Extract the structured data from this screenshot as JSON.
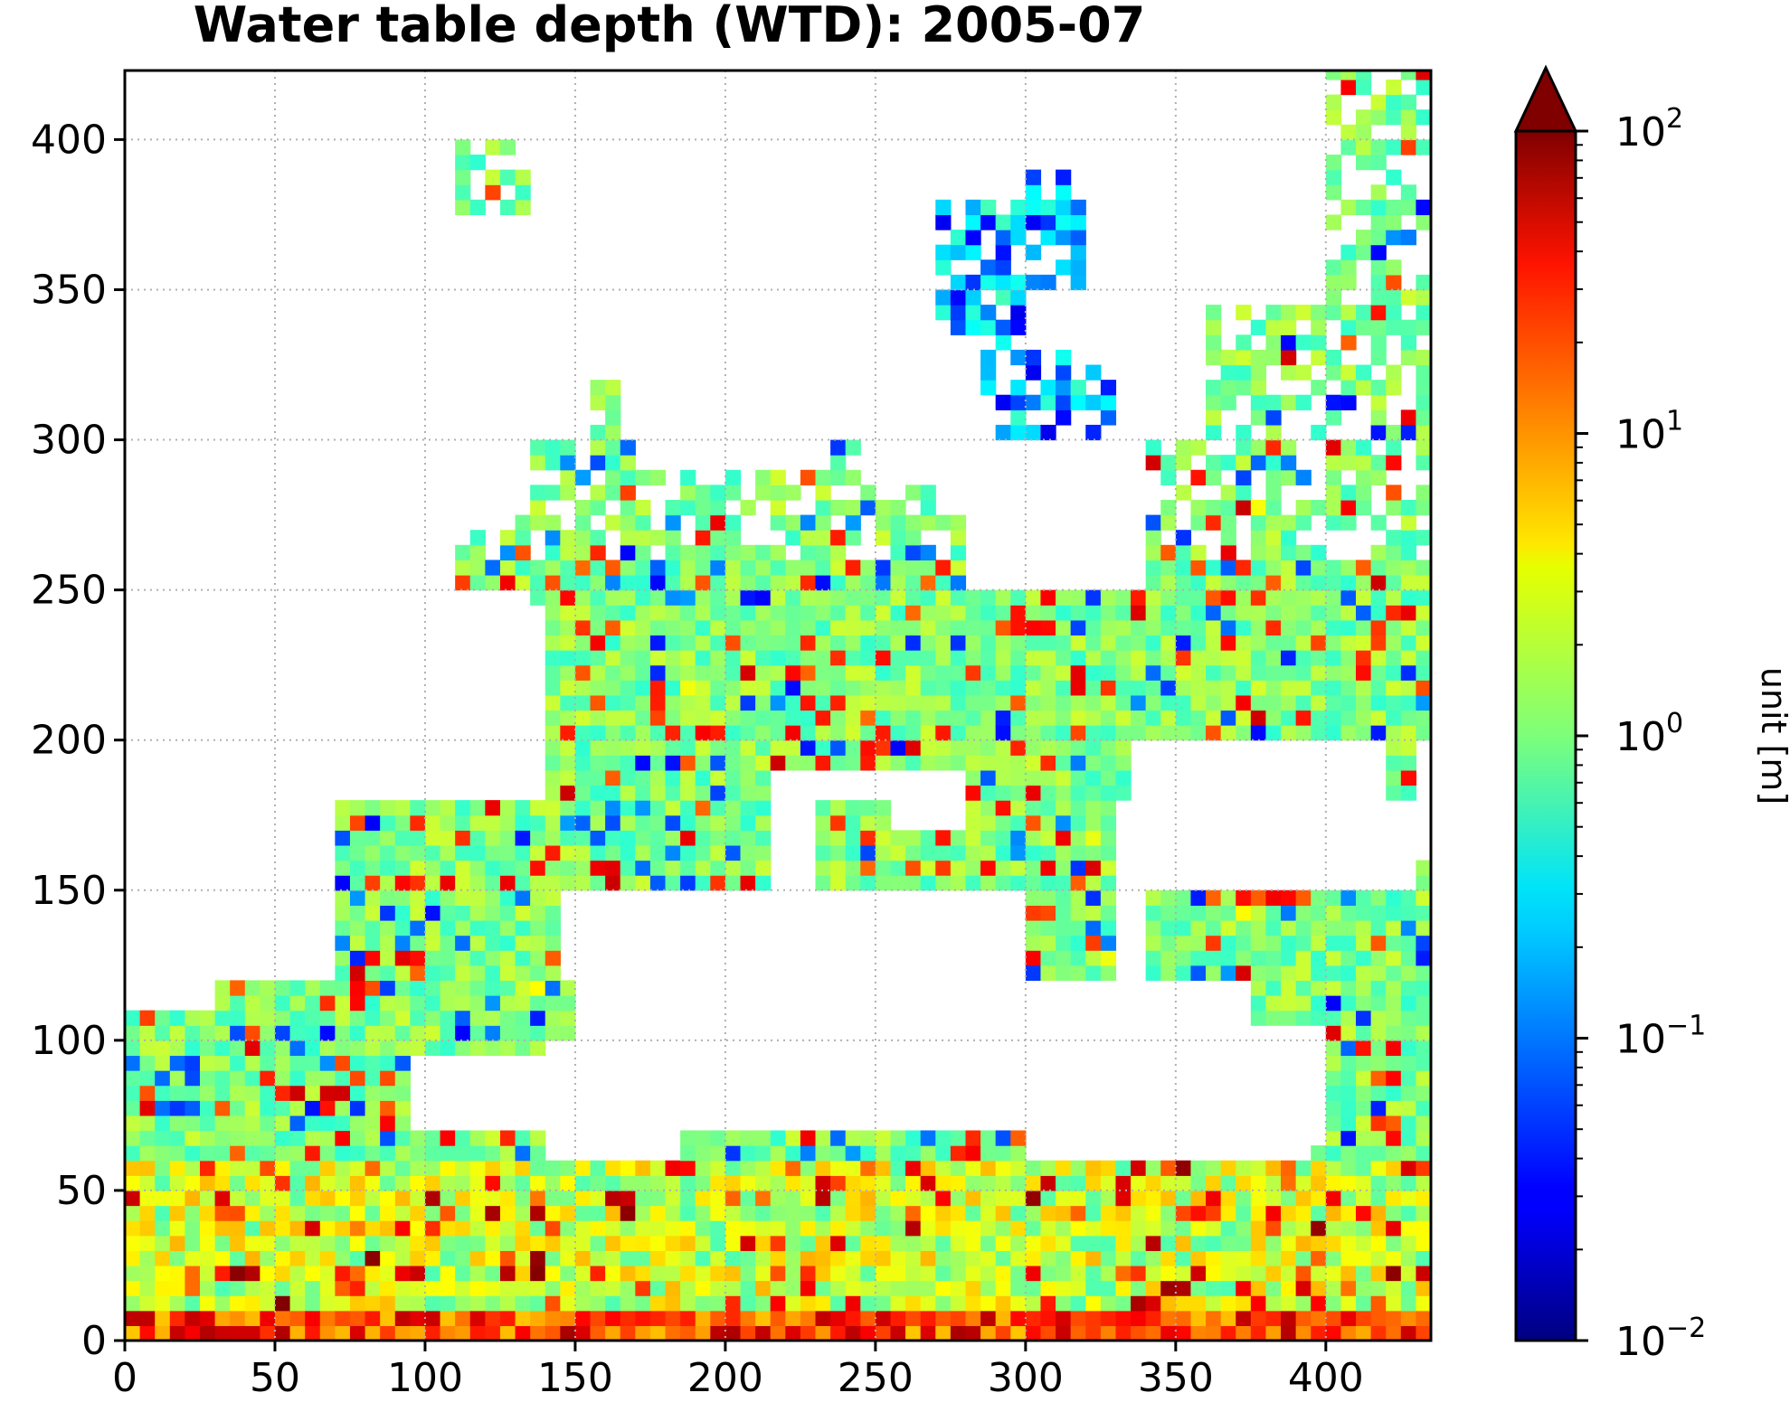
{
  "chart_data": {
    "type": "heatmap",
    "title": "Water table depth (WTD): 2005-07",
    "xlabel": "",
    "ylabel": "",
    "xlim": [
      0,
      435
    ],
    "ylim": [
      0,
      423
    ],
    "x_ticks": [
      0,
      50,
      100,
      150,
      200,
      250,
      300,
      350,
      400
    ],
    "y_ticks": [
      0,
      50,
      100,
      150,
      200,
      250,
      300,
      350,
      400
    ],
    "grid": true,
    "grid_style": "dotted",
    "colormap": "jet",
    "color_scale": "log",
    "colorbar": {
      "label": "unit [m]",
      "range": [
        0.01,
        100
      ],
      "ticks": [
        {
          "value": 0.01,
          "base": "10",
          "exp": "−2"
        },
        {
          "value": 0.1,
          "base": "10",
          "exp": "−1"
        },
        {
          "value": 1,
          "base": "10",
          "exp": "0"
        },
        {
          "value": 10,
          "base": "10",
          "exp": "1"
        },
        {
          "value": 100,
          "base": "10",
          "exp": "2"
        }
      ],
      "extend": "max",
      "extend_color": "#800000"
    },
    "missing_color": "#ffffff",
    "land_outline_color": "#ffffff"
  }
}
